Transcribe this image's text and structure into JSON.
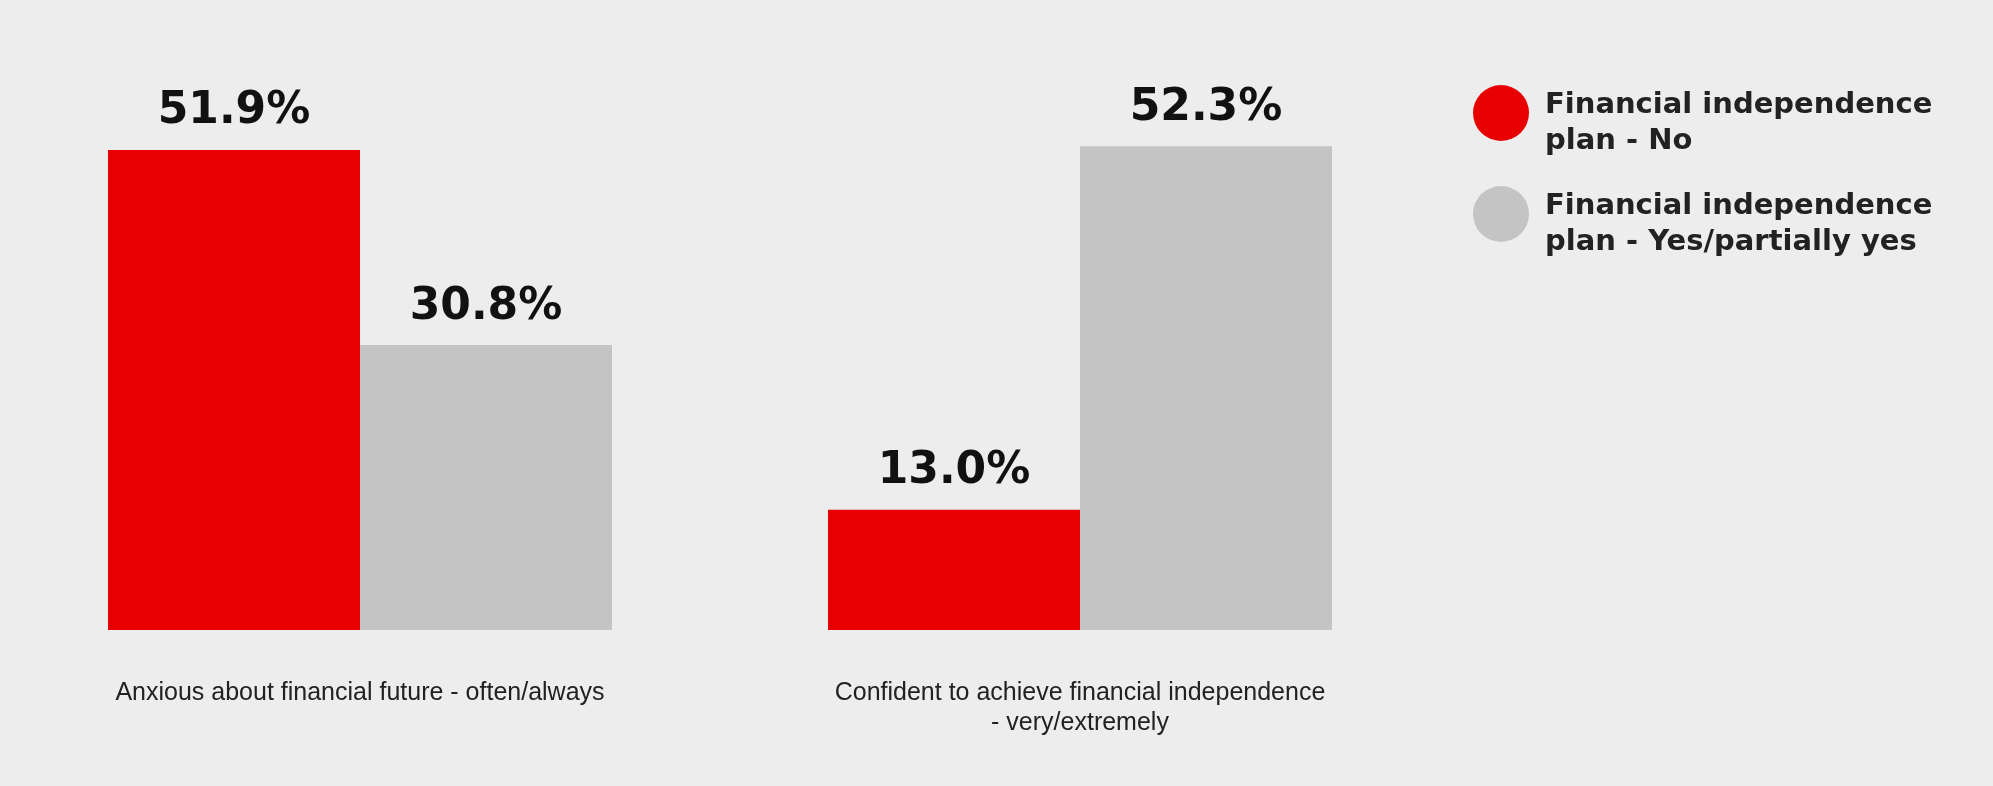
{
  "chart_data": {
    "type": "bar",
    "categories": [
      "Anxious about financial future - often/always",
      "Confident to achieve financial independence - very/extremely"
    ],
    "series": [
      {
        "name": "Financial independence plan - No",
        "color": "#e80000",
        "values": [
          51.9,
          13.0
        ],
        "value_labels": [
          "51.9%",
          "13.0%"
        ]
      },
      {
        "name": "Financial independence plan - Yes/partially yes",
        "color": "#c4c4c4",
        "values": [
          30.8,
          52.3
        ],
        "value_labels": [
          "30.8%",
          "52.3%"
        ]
      }
    ],
    "legend": "top right"
  }
}
